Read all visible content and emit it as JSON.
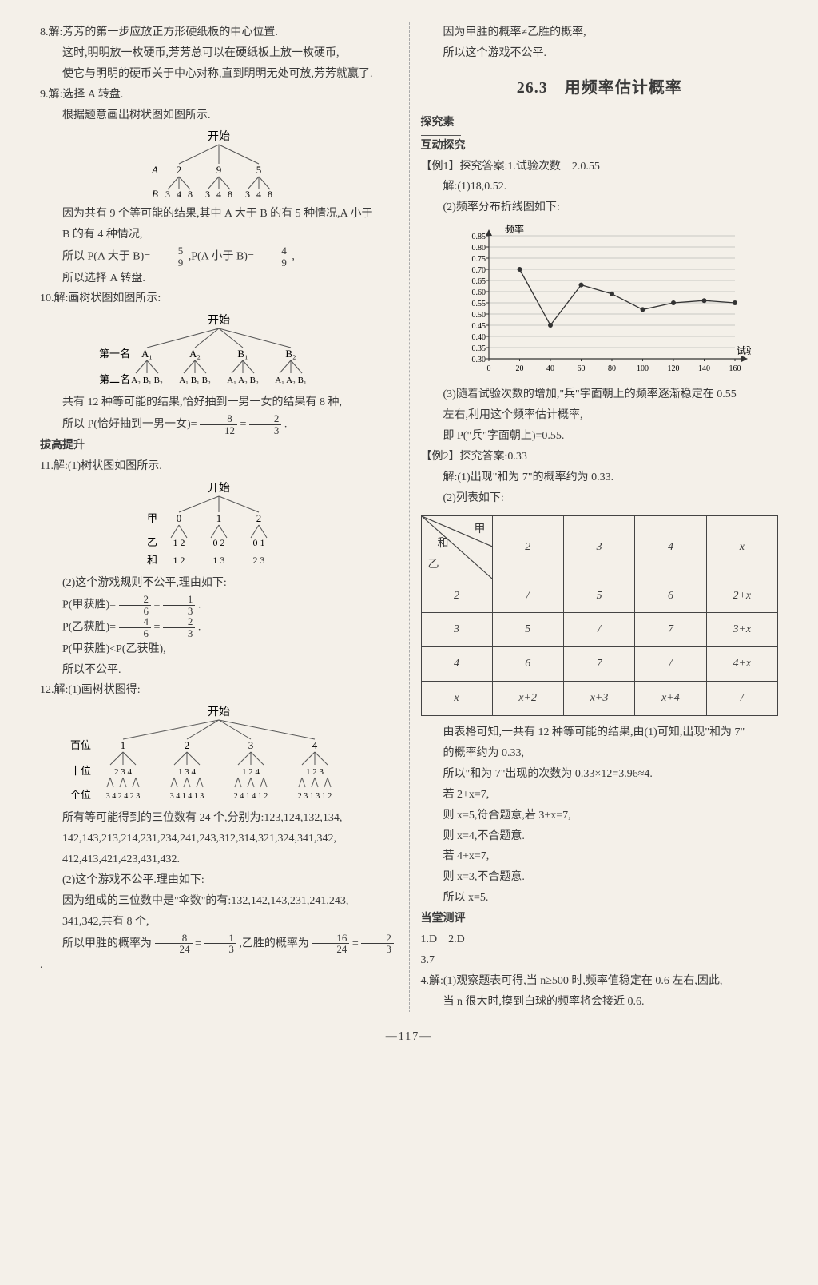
{
  "page_number": "—117—",
  "left": {
    "p8_a": "8.解:芳芳的第一步应放正方形硬纸板的中心位置.",
    "p8_b": "这时,明明放一枚硬币,芳芳总可以在硬纸板上放一枚硬币,",
    "p8_c": "使它与明明的硬币关于中心对称,直到明明无处可放,芳芳就赢了.",
    "p9_a": "9.解:选择 A 转盘.",
    "p9_b": "根据题意画出树状图如图所示.",
    "tree1": {
      "root": "开始",
      "level1_label": "A",
      "level1": [
        "2",
        "9",
        "5"
      ],
      "level2_label": "B",
      "level2": [
        "3",
        "4",
        "8",
        "3",
        "4",
        "8",
        "3",
        "4",
        "8"
      ]
    },
    "p9_c": "因为共有 9 个等可能的结果,其中 A 大于 B 的有 5 种情况,A 小于",
    "p9_d": "B 的有 4 种情况,",
    "p9_e_pre": "所以 P(A 大于 B)=",
    "p9_e_f1n": "5",
    "p9_e_f1d": "9",
    "p9_e_mid": ",P(A 小于 B)=",
    "p9_e_f2n": "4",
    "p9_e_f2d": "9",
    "p9_e_post": ",",
    "p9_f": "所以选择 A 转盘.",
    "p10_a": "10.解:画树状图如图所示:",
    "tree2": {
      "root": "开始",
      "row1_label": "第一名",
      "row1": [
        "A₁",
        "A₂",
        "B₁",
        "B₂"
      ],
      "row2_label": "第二名",
      "row2": [
        "A₂ B₁ B₂",
        "A₁ B₁ B₂",
        "A₁ A₂ B₂",
        "A₁ A₂ B₁"
      ]
    },
    "p10_b": "共有 12 种等可能的结果,恰好抽到一男一女的结果有 8 种,",
    "p10_c_pre": "所以 P(恰好抽到一男一女)=",
    "p10_c_f1n": "8",
    "p10_c_f1d": "12",
    "p10_c_eq": "=",
    "p10_c_f2n": "2",
    "p10_c_f2d": "3",
    "p10_c_post": ".",
    "heading_bg": "拔高提升",
    "p11_a": "11.解:(1)树状图如图所示.",
    "tree3": {
      "root": "开始",
      "r1_label": "甲",
      "r1": [
        "0",
        "1",
        "2"
      ],
      "r2_label": "乙",
      "r2": [
        "1  2",
        "0  2",
        "0  1"
      ],
      "r3_label": "和",
      "r3": [
        "1  2",
        "1  3",
        "2  3"
      ]
    },
    "p11_b": "(2)这个游戏规则不公平,理由如下:",
    "p11_c_pre": "P(甲获胜)=",
    "p11_c_f1n": "2",
    "p11_c_f1d": "6",
    "p11_c_eq": "=",
    "p11_c_f2n": "1",
    "p11_c_f2d": "3",
    "p11_c_post": ".",
    "p11_d_pre": "P(乙获胜)=",
    "p11_d_f1n": "4",
    "p11_d_f1d": "6",
    "p11_d_eq": "=",
    "p11_d_f2n": "2",
    "p11_d_f2d": "3",
    "p11_d_post": ".",
    "p11_e": "P(甲获胜)<P(乙获胜),",
    "p11_f": "所以不公平.",
    "p12_a": "12.解:(1)画树状图得:",
    "tree4": {
      "root": "开始",
      "r1_label": "百位",
      "r1": [
        "1",
        "2",
        "3",
        "4"
      ],
      "r2_label": "十位",
      "r2": [
        "2 3 4",
        "1 3 4",
        "1 2 4",
        "1 2 3"
      ],
      "r3_label": "个位",
      "r3": [
        "3 4 2 4 2 3",
        "3 4 1 4 1 3",
        "2 4 1 4 1 2",
        "2 3 1 3 1 2"
      ]
    },
    "p12_b": "所有等可能得到的三位数有 24 个,分别为:123,124,132,134,",
    "p12_c": "142,143,213,214,231,234,241,243,312,314,321,324,341,342,",
    "p12_d": "412,413,421,423,431,432.",
    "p12_e": "(2)这个游戏不公平.理由如下:",
    "p12_f": "因为组成的三位数中是\"伞数\"的有:132,142,143,231,241,243,",
    "p12_g": "341,342,共有 8 个,",
    "p12_h_pre": "所以甲胜的概率为",
    "p12_h_f1n": "8",
    "p12_h_f1d": "24",
    "p12_h_eq1": "=",
    "p12_h_f2n": "1",
    "p12_h_f2d": "3",
    "p12_h_mid": ",乙胜的概率为",
    "p12_h_f3n": "16",
    "p12_h_f3d": "24",
    "p12_h_eq2": "=",
    "p12_h_f4n": "2",
    "p12_h_f4d": "3",
    "p12_h_post": "."
  },
  "right": {
    "top_a": "因为甲胜的概率≠乙胜的概率,",
    "top_b": "所以这个游戏不公平.",
    "section_number": "26.3",
    "section_title": "用频率估计概率",
    "tjs": "探究素",
    "hdtj": "互动探究",
    "ex1_a": "【例1】探究答案:1.试验次数　2.0.55",
    "ex1_b": "解:(1)18,0.52.",
    "ex1_c": "(2)频率分布折线图如下:",
    "chart": {
      "type": "line",
      "x_label": "试验次数",
      "y_label": "频率",
      "x_ticks": [
        0,
        20,
        40,
        60,
        80,
        100,
        120,
        140,
        160
      ],
      "y_ticks": [
        0.3,
        0.35,
        0.4,
        0.45,
        0.5,
        0.55,
        0.6,
        0.65,
        0.7,
        0.75,
        0.8,
        0.85
      ],
      "ylim": [
        0.3,
        0.85
      ],
      "xlim": [
        0,
        160
      ],
      "points_x": [
        20,
        40,
        60,
        80,
        100,
        120,
        140,
        160
      ],
      "points_y": [
        0.7,
        0.45,
        0.63,
        0.59,
        0.52,
        0.55,
        0.56,
        0.55
      ],
      "line_color": "#333333",
      "grid_color": "#9e9e9e",
      "marker": "circle",
      "marker_size": 3,
      "bg": "#f4f0e9"
    },
    "ex1_d": "(3)随着试验次数的增加,\"兵\"字面朝上的频率逐渐稳定在 0.55",
    "ex1_e": "左右,利用这个频率估计概率,",
    "ex1_f": "即 P(\"兵\"字面朝上)=0.55.",
    "ex2_a": "【例2】探究答案:0.33",
    "ex2_b": "解:(1)出现\"和为 7\"的概率约为 0.33.",
    "ex2_c": "(2)列表如下:",
    "table": {
      "header_diag_top": "甲",
      "header_diag_left": "乙",
      "header_diag_mid": "和",
      "cols": [
        "2",
        "3",
        "4",
        "x"
      ],
      "rows": [
        {
          "h": "2",
          "cells": [
            "/",
            "5",
            "6",
            "2+x"
          ]
        },
        {
          "h": "3",
          "cells": [
            "5",
            "/",
            "7",
            "3+x"
          ]
        },
        {
          "h": "4",
          "cells": [
            "6",
            "7",
            "/",
            "4+x"
          ]
        },
        {
          "h": "x",
          "cells": [
            "x+2",
            "x+3",
            "x+4",
            "/"
          ]
        }
      ]
    },
    "ex2_d": "由表格可知,一共有 12 种等可能的结果,由(1)可知,出现\"和为 7\"",
    "ex2_e": "的概率约为 0.33,",
    "ex2_f": "所以\"和为 7\"出现的次数为 0.33×12=3.96≈4.",
    "ex2_g": "若 2+x=7,",
    "ex2_h": "则 x=5,符合题意,若 3+x=7,",
    "ex2_i": "则 x=4,不合题意.",
    "ex2_j": "若 4+x=7,",
    "ex2_k": "则 x=3,不合题意.",
    "ex2_l": "所以 x=5.",
    "dtcp": "当堂测评",
    "ans1": "1.D　2.D",
    "ans3": "3.7",
    "ans4a": "4.解:(1)观察题表可得,当 n≥500 时,频率值稳定在 0.6 左右,因此,",
    "ans4b": "当 n 很大时,摸到白球的频率将会接近 0.6."
  }
}
